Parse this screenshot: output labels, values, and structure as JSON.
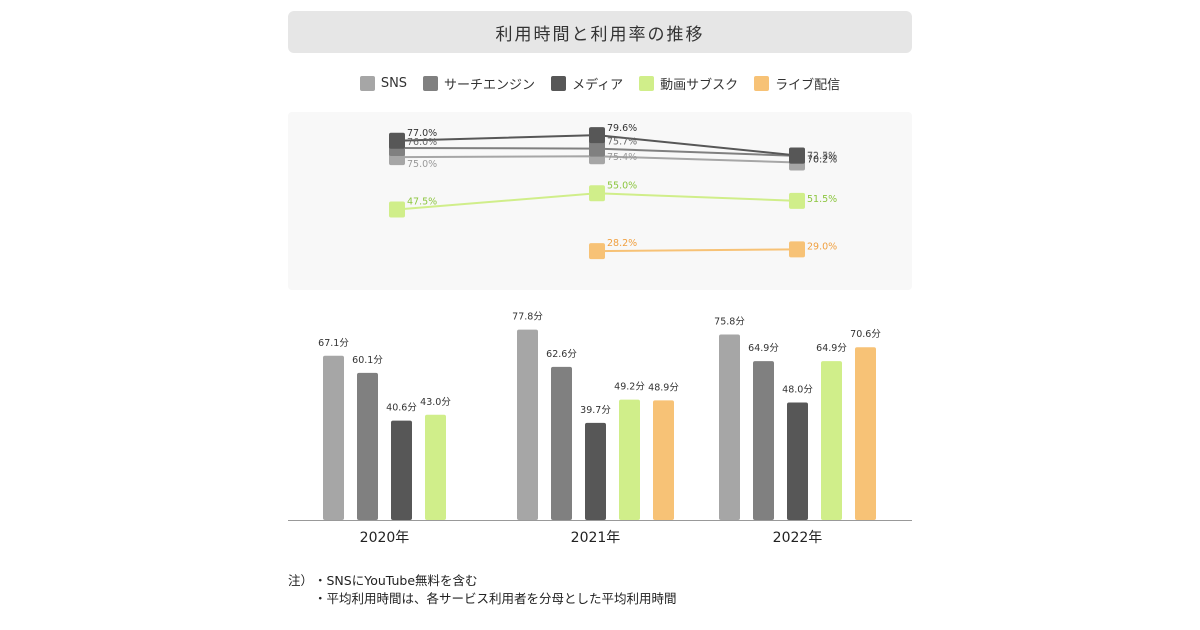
{
  "title": "利用時間と利用率の推移",
  "legend": [
    {
      "name": "SNS",
      "color": "#a6a6a6"
    },
    {
      "name": "サーチエンジン",
      "color": "#808080"
    },
    {
      "name": "メディア",
      "color": "#575757"
    },
    {
      "name": "動画サブスク",
      "color": "#d0ee8a"
    },
    {
      "name": "ライブ配信",
      "color": "#f7c276"
    }
  ],
  "chart_data": [
    {
      "type": "line",
      "x": [
        "2020年",
        "2021年",
        "2022年"
      ],
      "ylim": [
        25,
        82
      ],
      "series": [
        {
          "name": "SNS",
          "values": [
            75.0,
            75.4,
            72.5
          ],
          "labels": [
            "75.0%",
            "75.4%",
            "72.5%"
          ],
          "color": "#a6a6a6",
          "label_color": "#999999"
        },
        {
          "name": "サーチエンジン",
          "values": [
            76.0,
            75.7,
            72.3
          ],
          "labels": [
            "76.0%",
            "75.7%",
            "72.3%"
          ],
          "color": "#808080",
          "label_color": "#666666"
        },
        {
          "name": "メディア",
          "values": [
            77.0,
            79.6,
            70.2
          ],
          "labels": [
            "77.0%",
            "79.6%",
            "70.2%"
          ],
          "color": "#575757",
          "label_color": "#333333"
        },
        {
          "name": "動画サブスク",
          "values": [
            47.5,
            55.0,
            51.5
          ],
          "labels": [
            "47.5%",
            "55.0%",
            "51.5%"
          ],
          "color": "#d0ee8a",
          "label_color": "#8cc63f"
        },
        {
          "name": "ライブ配信",
          "values": [
            null,
            28.2,
            29.0
          ],
          "labels": [
            null,
            "28.2%",
            "29.0%"
          ],
          "color": "#f7c276",
          "label_color": "#f0a040"
        }
      ]
    },
    {
      "type": "bar",
      "categories": [
        "2020年",
        "2021年",
        "2022年"
      ],
      "ylim": [
        0,
        85
      ],
      "series": [
        {
          "name": "SNS",
          "values": [
            67.1,
            77.8,
            75.8
          ],
          "labels": [
            "67.1分",
            "77.8分",
            "75.8分"
          ],
          "color": "#a6a6a6"
        },
        {
          "name": "サーチエンジン",
          "values": [
            60.1,
            62.6,
            64.9
          ],
          "labels": [
            "60.1分",
            "62.6分",
            "64.9分"
          ],
          "color": "#808080"
        },
        {
          "name": "メディア",
          "values": [
            40.6,
            39.7,
            48.0
          ],
          "labels": [
            "40.6分",
            "39.7分",
            "48.0分"
          ],
          "color": "#575757"
        },
        {
          "name": "動画サブスク",
          "values": [
            43.0,
            49.2,
            64.9
          ],
          "labels": [
            "43.0分",
            "49.2分",
            "64.9分"
          ],
          "color": "#d0ee8a"
        },
        {
          "name": "ライブ配信",
          "values": [
            null,
            48.9,
            70.6
          ],
          "labels": [
            null,
            "48.9分",
            "70.6分"
          ],
          "color": "#f7c276"
        }
      ]
    }
  ],
  "notes": {
    "prefix": "注）",
    "items": [
      "・SNSにYouTube無料を含む",
      "・平均利用時間は、各サービス利用者を分母とした平均利用時間"
    ]
  }
}
